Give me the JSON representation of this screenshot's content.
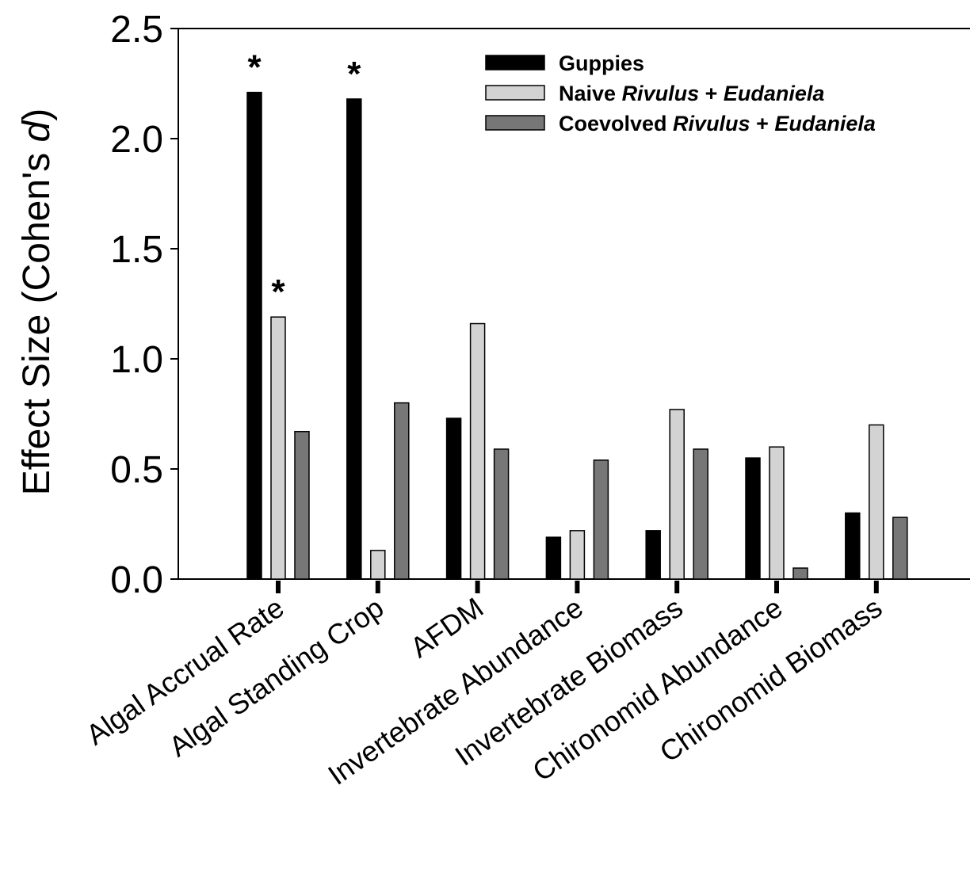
{
  "chart_data": {
    "type": "bar",
    "ylabel": "Effect Size (Cohen's d)",
    "ylabel_parts": [
      "Effect Size (Cohen's ",
      "d",
      ")"
    ],
    "ylim": [
      0,
      2.5
    ],
    "yticks": [
      "0.0",
      "0.5",
      "1.0",
      "1.5",
      "2.0",
      "2.5"
    ],
    "ytick_values": [
      0,
      0.5,
      1.0,
      1.5,
      2.0,
      2.5
    ],
    "categories": [
      "Algal Accrual Rate",
      "Algal Standing Crop",
      "AFDM",
      "Invertebrate Abundance",
      "Invertebrate Biomass",
      "Chironomid Abundance",
      "Chironomid Biomass"
    ],
    "series": [
      {
        "name": "Guppies",
        "legend_parts": [
          {
            "text": "Guppies",
            "italic": false
          }
        ],
        "color": "#000000",
        "values": [
          2.21,
          2.18,
          0.73,
          0.19,
          0.22,
          0.55,
          0.3
        ],
        "significant": [
          true,
          true,
          false,
          false,
          false,
          false,
          false
        ]
      },
      {
        "name": "Naive Rivulus + Eudaniela",
        "legend_parts": [
          {
            "text": "Naive ",
            "italic": false
          },
          {
            "text": "Rivulus",
            "italic": true
          },
          {
            "text": " + ",
            "italic": false
          },
          {
            "text": "Eudaniela",
            "italic": true
          }
        ],
        "color": "#d3d3d3",
        "values": [
          1.19,
          0.13,
          1.16,
          0.22,
          0.77,
          0.6,
          0.7
        ],
        "significant": [
          true,
          false,
          false,
          false,
          false,
          false,
          false
        ]
      },
      {
        "name": "Coevolved Rivulus + Eudaniela",
        "legend_parts": [
          {
            "text": "Coevolved ",
            "italic": false
          },
          {
            "text": "Rivulus",
            "italic": true
          },
          {
            "text": " + ",
            "italic": false
          },
          {
            "text": "Eudaniela",
            "italic": true
          }
        ],
        "color": "#777777",
        "values": [
          0.67,
          0.8,
          0.59,
          0.54,
          0.59,
          0.05,
          0.28
        ],
        "significant": [
          false,
          false,
          false,
          false,
          false,
          false,
          false
        ]
      }
    ],
    "significance_marker": "*",
    "legend_position": "top-right",
    "grid": false
  }
}
